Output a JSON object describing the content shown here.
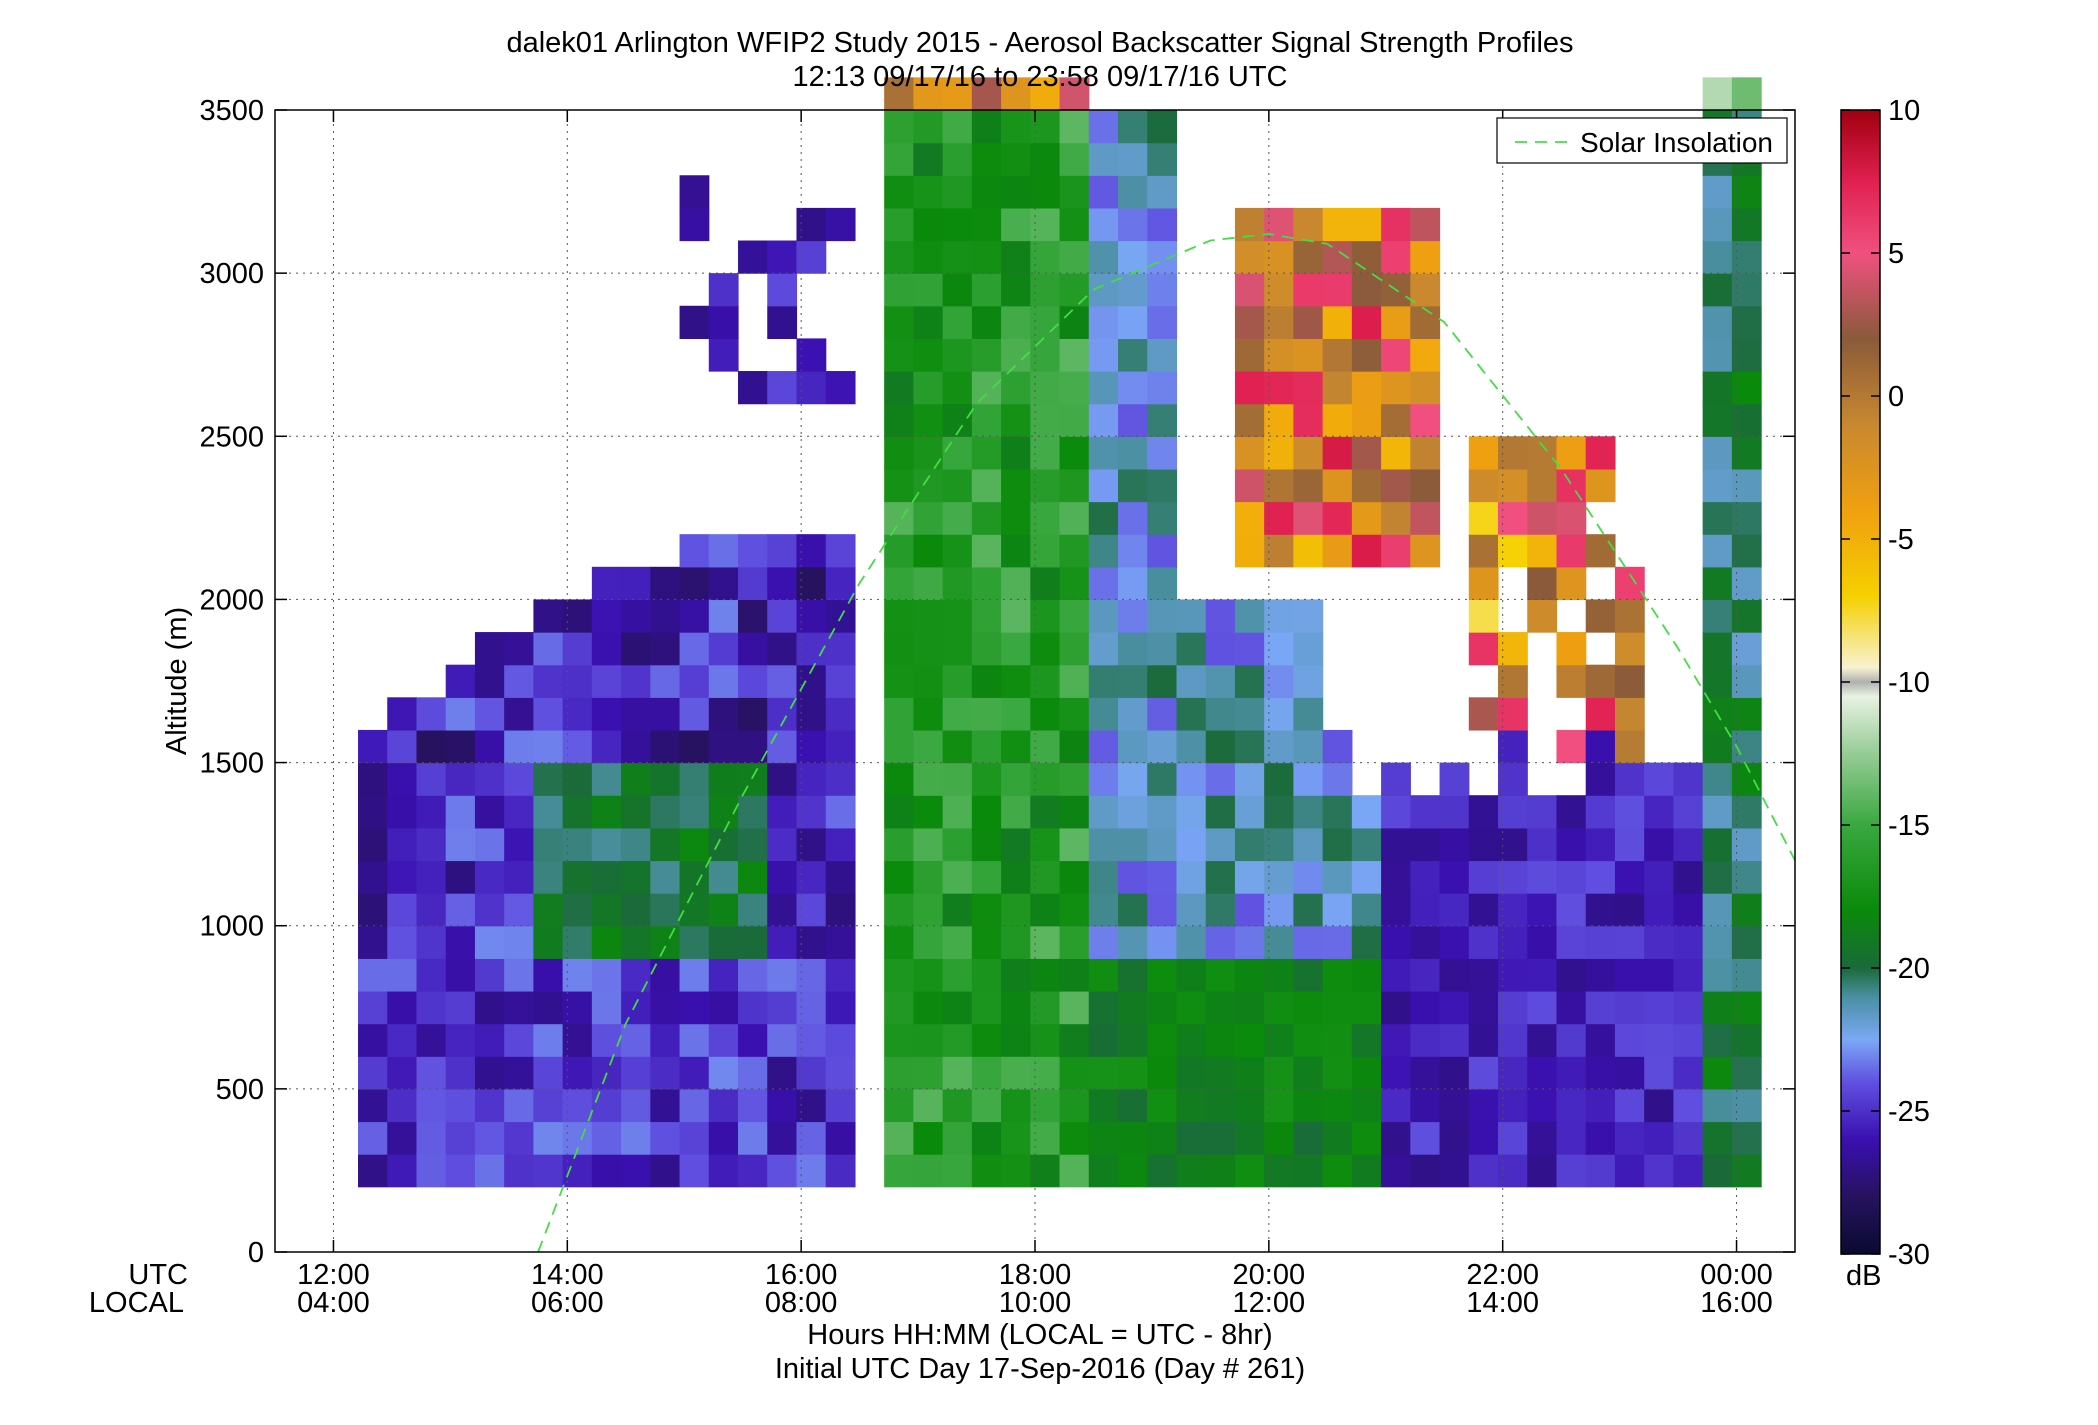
{
  "chart_data": {
    "type": "heatmap",
    "title": "dalek01 Arlington WFIP2 Study 2015 - Aerosol Backscatter Signal Strength Profiles",
    "subtitle": "12:13 09/17/16 to 23:58 09/17/16  UTC",
    "ylabel": "Altitude (m)",
    "xlabel": "Hours HH:MM  (LOCAL = UTC - 8hr)",
    "xlabel2": "Initial UTC Day 17-Sep-2016 (Day # 261)",
    "x_row_label_utc": "UTC",
    "x_row_label_local": "LOCAL",
    "xlim_hours": [
      11.5,
      24.5
    ],
    "ylim": [
      0,
      3500
    ],
    "grid": true,
    "x_ticks": [
      {
        "hour": 12,
        "utc": "12:00",
        "local": "04:00"
      },
      {
        "hour": 14,
        "utc": "14:00",
        "local": "06:00"
      },
      {
        "hour": 16,
        "utc": "16:00",
        "local": "08:00"
      },
      {
        "hour": 18,
        "utc": "18:00",
        "local": "10:00"
      },
      {
        "hour": 20,
        "utc": "20:00",
        "local": "12:00"
      },
      {
        "hour": 22,
        "utc": "22:00",
        "local": "14:00"
      },
      {
        "hour": 24,
        "utc": "00:00",
        "local": "16:00"
      }
    ],
    "y_ticks": [
      {
        "value": 0,
        "label": "0"
      },
      {
        "value": 500,
        "label": "500"
      },
      {
        "value": 1000,
        "label": "1000"
      },
      {
        "value": 1500,
        "label": "1500"
      },
      {
        "value": 2000,
        "label": "2000"
      },
      {
        "value": 2500,
        "label": "2500"
      },
      {
        "value": 3000,
        "label": "3000"
      },
      {
        "value": 3500,
        "label": "3500"
      }
    ],
    "colorbar": {
      "unit": "dB",
      "range": [
        -30,
        10
      ],
      "ticks": [
        {
          "value": 10,
          "label": "10"
        },
        {
          "value": 5,
          "label": "5"
        },
        {
          "value": 0,
          "label": "0"
        },
        {
          "value": -5,
          "label": "-5"
        },
        {
          "value": -10,
          "label": "-10"
        },
        {
          "value": -15,
          "label": "-15"
        },
        {
          "value": -20,
          "label": "-20"
        },
        {
          "value": -25,
          "label": "-25"
        },
        {
          "value": -30,
          "label": "-30"
        }
      ],
      "stops": [
        {
          "value": -30,
          "color": "#0a0a30"
        },
        {
          "value": -28,
          "color": "#26125e"
        },
        {
          "value": -26,
          "color": "#3a10b0"
        },
        {
          "value": -24,
          "color": "#6050e0"
        },
        {
          "value": -22.5,
          "color": "#7aa8f5"
        },
        {
          "value": -21,
          "color": "#4a8fa0"
        },
        {
          "value": -20,
          "color": "#1a6a3a"
        },
        {
          "value": -18,
          "color": "#0a8a0a"
        },
        {
          "value": -15,
          "color": "#3aa840"
        },
        {
          "value": -12.5,
          "color": "#96cc96"
        },
        {
          "value": -10.5,
          "color": "#e8f2e2"
        },
        {
          "value": -10,
          "color": "#b0b0b0"
        },
        {
          "value": -9.5,
          "color": "#f8f2d0"
        },
        {
          "value": -7,
          "color": "#f5d000"
        },
        {
          "value": -4,
          "color": "#f0a010"
        },
        {
          "value": -1,
          "color": "#c88830"
        },
        {
          "value": 2,
          "color": "#8a5a3a"
        },
        {
          "value": 5,
          "color": "#f05080"
        },
        {
          "value": 7.5,
          "color": "#e02050"
        },
        {
          "value": 10,
          "color": "#a00010"
        }
      ]
    },
    "legend": {
      "entries": [
        {
          "name": "Solar Insolation",
          "style": "dashed",
          "color": "#44dd44"
        }
      ],
      "placement": "top-right"
    },
    "solar_insolation": {
      "color": "#44dd44",
      "points": [
        [
          13.75,
          0
        ],
        [
          14.5,
          700
        ],
        [
          15.5,
          1400
        ],
        [
          16.5,
          2050
        ],
        [
          17.5,
          2600
        ],
        [
          18.5,
          2950
        ],
        [
          19.5,
          3100
        ],
        [
          20.0,
          3120
        ],
        [
          20.5,
          3090
        ],
        [
          21.5,
          2850
        ],
        [
          22.5,
          2400
        ],
        [
          23.5,
          1850
        ],
        [
          24.0,
          1550
        ],
        [
          24.5,
          1200
        ]
      ]
    },
    "heatmap_grid": {
      "x_start_hour": 12.21,
      "time_step_hours": 0.25,
      "y_start": 200,
      "alt_step": 100,
      "columns": 48,
      "rows": 34
    }
  }
}
